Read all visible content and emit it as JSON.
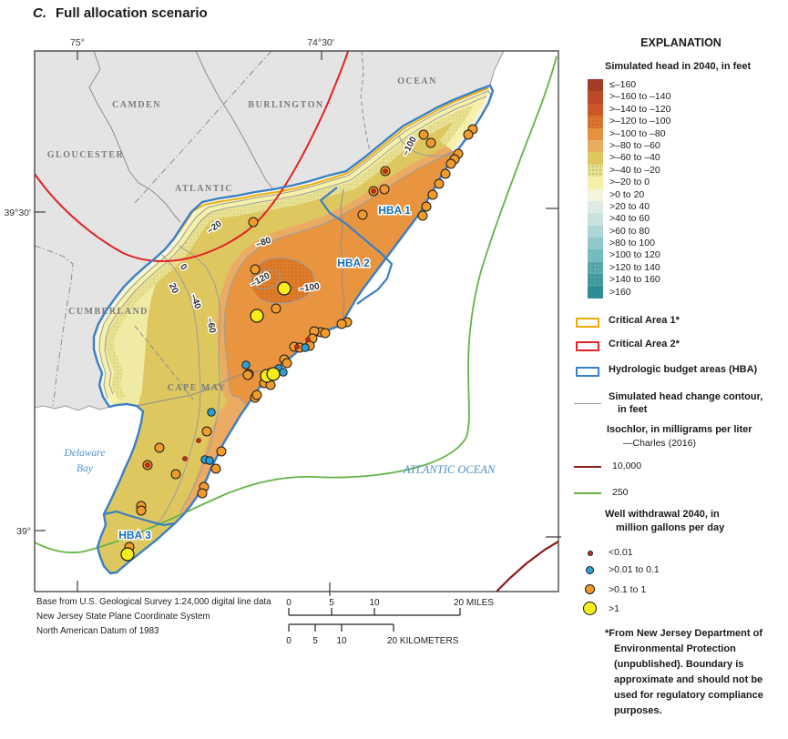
{
  "title": {
    "index": "C.",
    "text": "Full allocation scenario"
  },
  "map": {
    "graticule": {
      "lon75": "75°",
      "lon7430": "74°30'",
      "lat3930": "39°30'",
      "lat39": "39°"
    },
    "counties": {
      "camden": "CAMDEN",
      "burlington": "BURLINGTON",
      "gloucester": "GLOUCESTER",
      "atlantic": "ATLANTIC",
      "ocean": "OCEAN",
      "cumberland": "CUMBERLAND",
      "cape_may": "CAPE MAY"
    },
    "water": {
      "delaware1": "Delaware",
      "delaware2": "Bay",
      "atlantic_ocean": "ATLANTIC OCEAN"
    },
    "hba": {
      "hba1": "HBA 1",
      "hba2": "HBA 2",
      "hba3": "HBA 3"
    },
    "contours": {
      "m20": "–20",
      "z0": "0",
      "p20": "20",
      "m40": "–40",
      "m60": "–60",
      "m80": "–80",
      "m100a": "–100",
      "m120": "–120",
      "m100b": "–100"
    },
    "wells": [
      [
        519,
        124,
        "o"
      ],
      [
        514,
        130,
        "o"
      ],
      [
        503,
        151,
        "o"
      ],
      [
        499,
        157,
        "o"
      ],
      [
        495,
        162,
        "o"
      ],
      [
        489,
        173,
        "o"
      ],
      [
        482,
        184,
        "o"
      ],
      [
        475,
        196,
        "o"
      ],
      [
        468,
        209,
        "o"
      ],
      [
        464,
        219,
        "o"
      ],
      [
        465,
        130,
        "o"
      ],
      [
        473,
        139,
        "o"
      ],
      [
        423,
        170,
        "o"
      ],
      [
        410,
        192,
        "o"
      ],
      [
        422,
        190,
        "o"
      ],
      [
        398,
        218,
        "o"
      ],
      [
        278,
        226,
        "o"
      ],
      [
        280,
        278,
        "o"
      ],
      [
        303,
        321,
        "o"
      ],
      [
        381,
        336,
        "o"
      ],
      [
        375,
        338,
        "o"
      ],
      [
        352,
        347,
        "o"
      ],
      [
        357,
        348,
        "o"
      ],
      [
        345,
        346,
        "o"
      ],
      [
        343,
        354,
        "o"
      ],
      [
        340,
        362,
        "o"
      ],
      [
        323,
        363,
        "o"
      ],
      [
        329,
        364,
        "o"
      ],
      [
        312,
        377,
        "o"
      ],
      [
        315,
        381,
        "o"
      ],
      [
        297,
        392,
        "o"
      ],
      [
        273,
        393,
        "o"
      ],
      [
        290,
        403,
        "o"
      ],
      [
        297,
        405,
        "o"
      ],
      [
        280,
        419,
        "o"
      ],
      [
        282,
        416,
        "o"
      ],
      [
        272,
        394,
        "o"
      ],
      [
        227,
        456,
        "o"
      ],
      [
        243,
        478,
        "o"
      ],
      [
        237,
        497,
        "o"
      ],
      [
        224,
        517,
        "o"
      ],
      [
        222,
        524,
        "o"
      ],
      [
        175,
        474,
        "o"
      ],
      [
        193,
        503,
        "o"
      ],
      [
        162,
        493,
        "o"
      ],
      [
        155,
        538,
        "o"
      ],
      [
        155,
        543,
        "o"
      ],
      [
        142,
        583,
        "o"
      ],
      [
        335,
        364,
        "b"
      ],
      [
        306,
        387,
        "b"
      ],
      [
        311,
        391,
        "b"
      ],
      [
        232,
        435,
        "b"
      ],
      [
        225,
        487,
        "b"
      ],
      [
        230,
        488,
        "b"
      ],
      [
        270,
        383,
        "b"
      ],
      [
        312,
        299,
        "y"
      ],
      [
        282,
        329,
        "y"
      ],
      [
        293,
        395,
        "y"
      ],
      [
        300,
        393,
        "y"
      ],
      [
        140,
        591,
        "y"
      ],
      [
        423,
        170,
        "r"
      ],
      [
        410,
        192,
        "r"
      ],
      [
        338,
        355,
        "r"
      ],
      [
        326,
        363,
        "r"
      ],
      [
        218,
        466,
        "r"
      ],
      [
        203,
        486,
        "r"
      ],
      [
        162,
        493,
        "r"
      ]
    ]
  },
  "base_credit": [
    "Base from U.S. Geological Survey 1:24,000 digital line data",
    "New Jersey State Plane Coordinate System",
    "North American Datum of 1983"
  ],
  "scalebar": {
    "miles": {
      "t0": "0",
      "t5": "5",
      "t10": "10",
      "t20": "20 MILES"
    },
    "km": {
      "t0": "0",
      "t5": "5",
      "t10": "10",
      "t20": "20 KILOMETERS"
    }
  },
  "legend": {
    "heading": "EXPLANATION",
    "head_section": "Simulated head in 2040, in feet",
    "ramp": [
      {
        "label": "≤–160",
        "color": "#A23B28",
        "dot": false
      },
      {
        "label": ">–160 to –140",
        "color": "#BB4827",
        "dot": false
      },
      {
        "label": ">–140 to –120",
        "color": "#CB5628",
        "dot": false
      },
      {
        "label": ">–120 to –100",
        "color": "#DF742C",
        "dot": true
      },
      {
        "label": ">–100 to –80",
        "color": "#E6913B",
        "dot": false
      },
      {
        "label": ">–80 to –60",
        "color": "#EBAB62",
        "dot": false
      },
      {
        "label": ">–60 to –40",
        "color": "#DEC75F",
        "dot": false
      },
      {
        "label": ">–40 to –20",
        "color": "#E8E191",
        "dot": true
      },
      {
        "label": ">–20 to 0",
        "color": "#F5F1A9",
        "dot": false
      },
      {
        "label": ">0 to 20",
        "color": "#F6F3DE",
        "dot": false
      },
      {
        "label": ">20 to 40",
        "color": "#DFEAE7",
        "dot": false
      },
      {
        "label": ">40 to 60",
        "color": "#C9E2E0",
        "dot": false
      },
      {
        "label": ">60 to 80",
        "color": "#AED6D6",
        "dot": false
      },
      {
        "label": ">80 to 100",
        "color": "#92C8C9",
        "dot": false
      },
      {
        "label": ">100 to 120",
        "color": "#75BABD",
        "dot": false
      },
      {
        "label": ">120 to 140",
        "color": "#5AACB0",
        "dot": true
      },
      {
        "label": ">140 to 160",
        "color": "#44A0A5",
        "dot": true
      },
      {
        "label": ">160",
        "color": "#2C8D93",
        "dot": false
      }
    ],
    "critical1": "Critical Area 1*",
    "critical2": "Critical Area 2*",
    "hba": "Hydrologic budget areas (HBA)",
    "contour_line1": "Simulated head change contour,",
    "contour_line2": "in feet",
    "isochlor_line1": "Isochlor, in milligrams per liter",
    "isochlor_line2": "—Charles (2016)",
    "iso10000": "10,000",
    "iso250": "250",
    "well_line1": "Well withdrawal 2040, in",
    "well_line2": "million gallons per day",
    "well_lt001": "<0.01",
    "well_001_01": ">0.01 to 0.1",
    "well_01_1": ">0.1 to 1",
    "well_gt1": ">1",
    "footnote": [
      "*From New Jersey Department of",
      "Environmental Protection",
      "(unpublished). Boundary is",
      "approximate and should not be",
      "used for regulatory compliance",
      "purposes."
    ]
  },
  "colors": {
    "critical1": "#F0AB00",
    "critical2": "#E32226",
    "hba_boundary": "#3B7FC4",
    "contour": "#9C9C9C",
    "iso10000": "#8E1B1B",
    "iso250": "#62B445",
    "well_r": "#C62F1D",
    "well_b": "#2D9FD6",
    "well_o": "#F09B2C",
    "well_y": "#F8EC1A"
  }
}
